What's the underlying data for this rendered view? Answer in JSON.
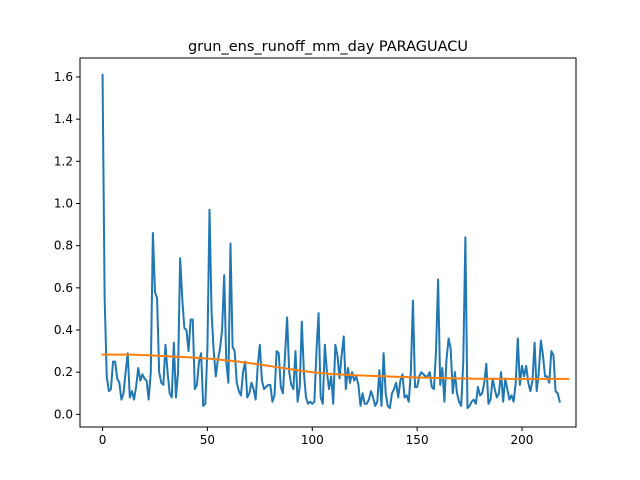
{
  "chart_data": {
    "type": "line",
    "title": "grun_ens_runoff_mm_day PARAGUACU",
    "xlabel": "",
    "ylabel": "",
    "xlim": [
      -10.75,
      225.75
    ],
    "ylim": [
      -0.06,
      1.69
    ],
    "xticks": [
      0,
      50,
      100,
      150,
      200
    ],
    "yticks": [
      0.0,
      0.2,
      0.4,
      0.6,
      0.8,
      1.0,
      1.2,
      1.4,
      1.6
    ],
    "ytick_labels": [
      "0.0",
      "0.2",
      "0.4",
      "0.6",
      "0.8",
      "1.0",
      "1.2",
      "1.4",
      "1.6"
    ],
    "grid": false,
    "series": [
      {
        "color": "#1f77b4",
        "x_start": 0,
        "values": [
          1.61,
          0.55,
          0.18,
          0.11,
          0.12,
          0.25,
          0.25,
          0.17,
          0.15,
          0.07,
          0.1,
          0.2,
          0.29,
          0.08,
          0.11,
          0.07,
          0.13,
          0.22,
          0.16,
          0.19,
          0.17,
          0.16,
          0.07,
          0.2,
          0.86,
          0.58,
          0.55,
          0.2,
          0.15,
          0.14,
          0.33,
          0.2,
          0.1,
          0.08,
          0.34,
          0.08,
          0.2,
          0.74,
          0.55,
          0.41,
          0.4,
          0.3,
          0.45,
          0.45,
          0.12,
          0.14,
          0.25,
          0.29,
          0.04,
          0.05,
          0.31,
          0.97,
          0.48,
          0.3,
          0.18,
          0.26,
          0.31,
          0.4,
          0.66,
          0.25,
          0.15,
          0.81,
          0.32,
          0.3,
          0.15,
          0.11,
          0.09,
          0.2,
          0.25,
          0.08,
          0.1,
          0.15,
          0.12,
          0.07,
          0.23,
          0.33,
          0.16,
          0.12,
          0.13,
          0.14,
          0.14,
          0.06,
          0.09,
          0.3,
          0.29,
          0.13,
          0.1,
          0.28,
          0.46,
          0.2,
          0.14,
          0.12,
          0.3,
          0.06,
          0.13,
          0.44,
          0.2,
          0.08,
          0.05,
          0.06,
          0.05,
          0.06,
          0.3,
          0.48,
          0.08,
          0.05,
          0.33,
          0.2,
          0.12,
          0.18,
          0.05,
          0.33,
          0.28,
          0.17,
          0.28,
          0.37,
          0.12,
          0.22,
          0.15,
          0.2,
          0.16,
          0.18,
          0.14,
          0.04,
          0.1,
          0.05,
          0.05,
          0.07,
          0.11,
          0.08,
          0.04,
          0.06,
          0.21,
          0.04,
          0.29,
          0.1,
          0.04,
          0.03,
          0.1,
          0.12,
          0.15,
          0.08,
          0.16,
          0.19,
          0.08,
          0.09,
          0.06,
          0.2,
          0.54,
          0.13,
          0.13,
          0.18,
          0.2,
          0.19,
          0.18,
          0.18,
          0.2,
          0.13,
          0.12,
          0.3,
          0.64,
          0.14,
          0.22,
          0.06,
          0.26,
          0.36,
          0.31,
          0.1,
          0.2,
          0.1,
          0.06,
          0.04,
          0.25,
          0.84,
          0.03,
          0.04,
          0.06,
          0.07,
          0.05,
          0.13,
          0.09,
          0.1,
          0.15,
          0.24,
          0.05,
          0.07,
          0.17,
          0.12,
          0.08,
          0.1,
          0.2,
          0.06,
          0.17,
          0.12,
          0.07,
          0.09,
          0.06,
          0.15,
          0.36,
          0.14,
          0.23,
          0.18,
          0.23,
          0.15,
          0.11,
          0.16,
          0.34,
          0.11,
          0.2,
          0.35,
          0.28,
          0.18,
          0.18,
          0.15,
          0.3,
          0.28,
          0.11,
          0.1,
          0.06
        ]
      },
      {
        "color": "#ff7f0e",
        "x_start": 0,
        "values": [
          0.283,
          0.283,
          0.283,
          0.283,
          0.283,
          0.283,
          0.283,
          0.283,
          0.283,
          0.283,
          0.283,
          0.283,
          0.283,
          0.283,
          0.283,
          0.283,
          0.282,
          0.282,
          0.282,
          0.281,
          0.281,
          0.281,
          0.28,
          0.28,
          0.279,
          0.279,
          0.278,
          0.278,
          0.277,
          0.277,
          0.276,
          0.276,
          0.275,
          0.275,
          0.274,
          0.274,
          0.273,
          0.273,
          0.272,
          0.272,
          0.271,
          0.271,
          0.27,
          0.269,
          0.269,
          0.268,
          0.267,
          0.267,
          0.266,
          0.265,
          0.264,
          0.264,
          0.263,
          0.262,
          0.261,
          0.26,
          0.259,
          0.258,
          0.257,
          0.256,
          0.255,
          0.254,
          0.253,
          0.252,
          0.251,
          0.25,
          0.248,
          0.247,
          0.246,
          0.245,
          0.243,
          0.242,
          0.24,
          0.239,
          0.238,
          0.236,
          0.235,
          0.233,
          0.232,
          0.23,
          0.229,
          0.227,
          0.226,
          0.224,
          0.223,
          0.221,
          0.22,
          0.218,
          0.217,
          0.215,
          0.214,
          0.212,
          0.211,
          0.209,
          0.208,
          0.206,
          0.205,
          0.204,
          0.202,
          0.201,
          0.2,
          0.199,
          0.198,
          0.197,
          0.196,
          0.195,
          0.194,
          0.193,
          0.192,
          0.192,
          0.191,
          0.19,
          0.19,
          0.189,
          0.189,
          0.188,
          0.188,
          0.187,
          0.187,
          0.186,
          0.186,
          0.185,
          0.185,
          0.185,
          0.184,
          0.184,
          0.183,
          0.183,
          0.183,
          0.182,
          0.182,
          0.182,
          0.181,
          0.181,
          0.181,
          0.18,
          0.18,
          0.179,
          0.179,
          0.179,
          0.178,
          0.178,
          0.178,
          0.177,
          0.177,
          0.177,
          0.176,
          0.176,
          0.176,
          0.175,
          0.175,
          0.175,
          0.174,
          0.174,
          0.174,
          0.174,
          0.173,
          0.173,
          0.173,
          0.173,
          0.172,
          0.172,
          0.172,
          0.172,
          0.171,
          0.171,
          0.171,
          0.171,
          0.171,
          0.17,
          0.17,
          0.17,
          0.17,
          0.17,
          0.17,
          0.17,
          0.169,
          0.169,
          0.169,
          0.169,
          0.169,
          0.169,
          0.169,
          0.169,
          0.169,
          0.169,
          0.169,
          0.169,
          0.169,
          0.169,
          0.169,
          0.169,
          0.168,
          0.168,
          0.168,
          0.168,
          0.168,
          0.168,
          0.168,
          0.168,
          0.168,
          0.168,
          0.168,
          0.168,
          0.168,
          0.168,
          0.168,
          0.168,
          0.168,
          0.168,
          0.168,
          0.168,
          0.168,
          0.168,
          0.168,
          0.168,
          0.168,
          0.168,
          0.168,
          0.168,
          0.168,
          0.168,
          0.168
        ]
      }
    ]
  }
}
